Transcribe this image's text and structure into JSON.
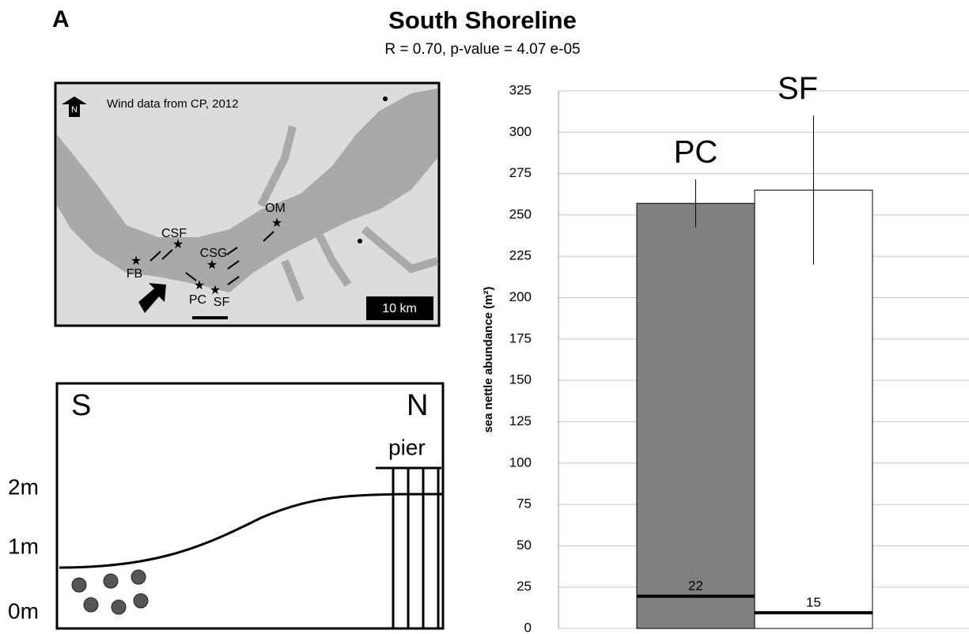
{
  "panel_label": "A",
  "chart_data": {
    "type": "bar",
    "title": "South Shoreline",
    "subtitle": "R = 0.70, p-value = 4.07 e-05",
    "y_label": "sea nettle abundance (m²)",
    "categories": [
      "PC",
      "SF"
    ],
    "values": [
      257,
      265
    ],
    "errors": [
      14.5,
      45
    ],
    "colors": [
      "#808080",
      "#ffffff"
    ],
    "baseline_levels": [
      19.5,
      9.5
    ],
    "baseline_counts": [
      22,
      15
    ],
    "ylim": [
      0,
      325
    ],
    "yticks": [
      0,
      25,
      50,
      75,
      100,
      125,
      150,
      175,
      200,
      225,
      250,
      275,
      300,
      325
    ],
    "grid": true
  },
  "map": {
    "north": "N",
    "caption": "Wind data from CP, 2012",
    "sites": [
      "OM",
      "CSF",
      "CSG",
      "FB",
      "PC",
      "SF"
    ],
    "scale": "10 km"
  },
  "profile": {
    "south": "S",
    "north": "N",
    "pier": "pier",
    "depths": [
      "2m",
      "1m",
      "0m"
    ]
  }
}
